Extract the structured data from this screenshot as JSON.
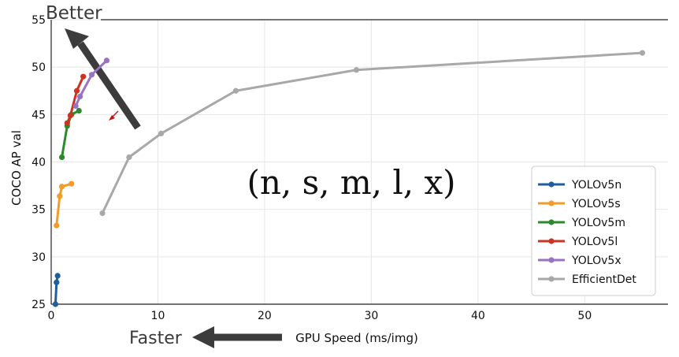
{
  "chart_data": {
    "type": "line",
    "xlabel": "GPU Speed (ms/img)",
    "ylabel": "COCO AP val",
    "xlim": [
      0,
      57.8
    ],
    "ylim": [
      25,
      55
    ],
    "xticks": [
      0,
      10,
      20,
      30,
      40,
      50
    ],
    "yticks": [
      25,
      30,
      35,
      40,
      45,
      50,
      55
    ],
    "grid": true,
    "legend_position": "bottom-right",
    "annotations": {
      "better": "Better",
      "faster": "Faster",
      "variants": "(n, s, m, l, x)"
    },
    "series": [
      {
        "name": "YOLOv5n",
        "color": "#1f5fa0",
        "x": [
          0.4,
          0.5,
          0.6
        ],
        "y": [
          25.0,
          27.3,
          28.0
        ]
      },
      {
        "name": "YOLOv5s",
        "color": "#f39c2b",
        "x": [
          0.5,
          0.8,
          1.0,
          1.9
        ],
        "y": [
          33.3,
          36.4,
          37.4,
          37.7
        ]
      },
      {
        "name": "YOLOv5m",
        "color": "#2b8a2b",
        "x": [
          1.0,
          1.5,
          1.9,
          2.6
        ],
        "y": [
          40.5,
          43.8,
          45.0,
          45.4
        ]
      },
      {
        "name": "YOLOv5l",
        "color": "#cc3322",
        "x": [
          1.5,
          1.8,
          2.4,
          3.0
        ],
        "y": [
          44.1,
          44.9,
          47.5,
          49.0
        ]
      },
      {
        "name": "YOLOv5x",
        "color": "#9a72c2",
        "x": [
          2.3,
          2.7,
          3.8,
          5.2
        ],
        "y": [
          45.9,
          46.9,
          49.2,
          50.7
        ]
      },
      {
        "name": "EfficientDet",
        "color": "#a8a8a8",
        "x": [
          4.8,
          7.3,
          10.3,
          17.3,
          28.6,
          55.4
        ],
        "y": [
          34.6,
          40.5,
          43.0,
          47.5,
          49.7,
          51.5
        ]
      }
    ]
  }
}
